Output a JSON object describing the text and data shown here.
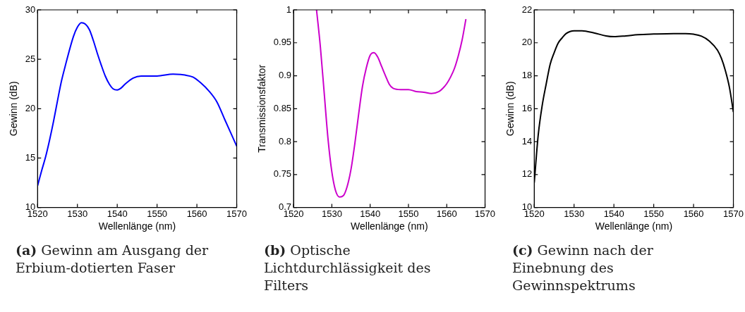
{
  "chart_data": [
    {
      "type": "line",
      "xlabel": "Wellenlänge (nm)",
      "ylabel": "Gewinn (dB)",
      "xlim": [
        1520,
        1570
      ],
      "xticks": [
        1520,
        1530,
        1540,
        1550,
        1560,
        1570
      ],
      "ylim": [
        10,
        30
      ],
      "yticks": [
        10,
        15,
        20,
        25,
        30
      ],
      "grid": false,
      "legend": false,
      "marker": "none",
      "line_style": "solid",
      "annotations": [
        "(a) Gewinn am Ausgang der Erbium-dotierten Faser"
      ],
      "series": [
        {
          "color": "#0000ff",
          "x": [
            1520,
            1521,
            1522,
            1523,
            1524,
            1525,
            1526,
            1527,
            1529,
            1530,
            1531,
            1532,
            1533,
            1534,
            1535,
            1536,
            1537,
            1538,
            1539,
            1540,
            1541,
            1542,
            1544,
            1546,
            1550,
            1554,
            1557,
            1559,
            1561,
            1563,
            1565,
            1567,
            1570
          ],
          "values": [
            12.2,
            13.7,
            15.1,
            16.8,
            18.7,
            20.8,
            22.8,
            24.4,
            27.3,
            28.25,
            28.7,
            28.55,
            28.0,
            26.9,
            25.6,
            24.4,
            23.3,
            22.5,
            22.0,
            21.9,
            22.1,
            22.5,
            23.1,
            23.3,
            23.3,
            23.5,
            23.4,
            23.2,
            22.6,
            21.8,
            20.7,
            18.9,
            16.2
          ]
        }
      ]
    },
    {
      "type": "line",
      "xlabel": "Wellenlänge (nm)",
      "ylabel": "Transmissionsfaktor",
      "xlim": [
        1520,
        1570
      ],
      "xticks": [
        1520,
        1530,
        1540,
        1550,
        1560,
        1570
      ],
      "ylim": [
        0.7,
        1
      ],
      "yticks": [
        0.7,
        0.75,
        0.8,
        0.85,
        0.9,
        0.95,
        1
      ],
      "grid": false,
      "legend": false,
      "marker": "none",
      "line_style": "solid",
      "annotations": [
        "(b) Optische Lichtdurchlässigkeit des Filters"
      ],
      "series": [
        {
          "color": "#cc00cc",
          "x": [
            1526,
            1527,
            1528,
            1529,
            1530,
            1531,
            1532,
            1533,
            1534,
            1535,
            1536,
            1537,
            1538,
            1539,
            1540,
            1541,
            1542,
            1543,
            1544,
            1545,
            1546,
            1548,
            1550,
            1552,
            1554,
            1556,
            1558,
            1559,
            1560,
            1561,
            1562,
            1563,
            1564,
            1565
          ],
          "values": [
            1.0,
            0.944,
            0.874,
            0.804,
            0.754,
            0.725,
            0.716,
            0.718,
            0.732,
            0.758,
            0.797,
            0.842,
            0.884,
            0.912,
            0.931,
            0.935,
            0.928,
            0.914,
            0.9,
            0.887,
            0.881,
            0.879,
            0.879,
            0.876,
            0.875,
            0.873,
            0.876,
            0.881,
            0.888,
            0.898,
            0.911,
            0.93,
            0.954,
            0.986
          ]
        }
      ]
    },
    {
      "type": "line",
      "xlabel": "Wellenlänge (nm)",
      "ylabel": "Gewinn (dB)",
      "xlim": [
        1520,
        1570
      ],
      "xticks": [
        1520,
        1530,
        1540,
        1550,
        1560,
        1570
      ],
      "ylim": [
        10,
        22
      ],
      "yticks": [
        10,
        12,
        14,
        16,
        18,
        20,
        22
      ],
      "grid": false,
      "legend": false,
      "marker": "none",
      "line_style": "solid",
      "annotations": [
        "(c) Gewinn nach der Einebnung des Gewinnspektrums"
      ],
      "series": [
        {
          "color": "#000000",
          "x": [
            1520,
            1521,
            1522,
            1523,
            1524,
            1525,
            1526,
            1527,
            1528,
            1530,
            1532,
            1535,
            1538,
            1540,
            1543,
            1546,
            1550,
            1555,
            1558,
            1560,
            1562,
            1564,
            1566,
            1567,
            1568,
            1569,
            1570
          ],
          "values": [
            11.5,
            14.4,
            16.2,
            17.5,
            18.7,
            19.4,
            19.98,
            20.3,
            20.56,
            20.73,
            20.73,
            20.6,
            20.42,
            20.37,
            20.42,
            20.49,
            20.53,
            20.56,
            20.56,
            20.52,
            20.4,
            20.1,
            19.55,
            19.05,
            18.3,
            17.3,
            15.8
          ]
        }
      ]
    }
  ]
}
